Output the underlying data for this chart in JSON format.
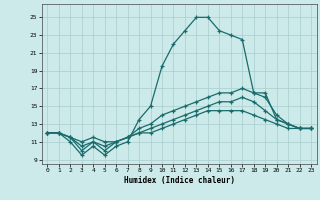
{
  "title": "",
  "xlabel": "Humidex (Indice chaleur)",
  "background_color": "#cceaea",
  "grid_color": "#aacccc",
  "line_color": "#1a6b6b",
  "xlim": [
    -0.5,
    23.5
  ],
  "ylim": [
    8.5,
    26.5
  ],
  "xticks": [
    0,
    1,
    2,
    3,
    4,
    5,
    6,
    7,
    8,
    9,
    10,
    11,
    12,
    13,
    14,
    15,
    16,
    17,
    18,
    19,
    20,
    21,
    22,
    23
  ],
  "yticks": [
    9,
    11,
    13,
    15,
    17,
    19,
    21,
    23,
    25
  ],
  "series": [
    [
      12.0,
      12.0,
      11.0,
      9.5,
      10.5,
      9.5,
      10.5,
      11.0,
      13.5,
      15.0,
      19.5,
      22.0,
      23.5,
      25.0,
      25.0,
      23.5,
      23.0,
      22.5,
      16.5,
      16.5,
      13.5,
      13.0,
      12.5,
      12.5
    ],
    [
      12.0,
      12.0,
      11.5,
      10.0,
      11.0,
      10.0,
      11.0,
      11.5,
      12.5,
      13.0,
      14.0,
      14.5,
      15.0,
      15.5,
      16.0,
      16.5,
      16.5,
      17.0,
      16.5,
      16.0,
      14.0,
      13.0,
      12.5,
      12.5
    ],
    [
      12.0,
      12.0,
      11.5,
      10.5,
      11.0,
      10.5,
      11.0,
      11.5,
      12.0,
      12.5,
      13.0,
      13.5,
      14.0,
      14.5,
      15.0,
      15.5,
      15.5,
      16.0,
      15.5,
      14.5,
      13.5,
      13.0,
      12.5,
      12.5
    ],
    [
      12.0,
      12.0,
      11.5,
      11.0,
      11.5,
      11.0,
      11.0,
      11.5,
      12.0,
      12.0,
      12.5,
      13.0,
      13.5,
      14.0,
      14.5,
      14.5,
      14.5,
      14.5,
      14.0,
      13.5,
      13.0,
      12.5,
      12.5,
      12.5
    ]
  ]
}
